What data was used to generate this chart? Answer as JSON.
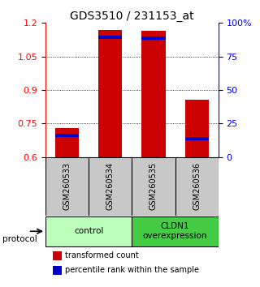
{
  "title": "GDS3510 / 231153_at",
  "samples": [
    "GSM260533",
    "GSM260534",
    "GSM260535",
    "GSM260536"
  ],
  "red_bar_tops": [
    0.73,
    1.17,
    1.165,
    0.855
  ],
  "blue_marker_vals": [
    0.69,
    1.13,
    1.125,
    0.675
  ],
  "bar_base": 0.6,
  "ylim": [
    0.6,
    1.2
  ],
  "yticks_left": [
    0.6,
    0.75,
    0.9,
    1.05,
    1.2
  ],
  "yticks_right_labels": [
    "0",
    "25",
    "75",
    "100"
  ],
  "yticks_right_vals": [
    0.6,
    0.75,
    1.05,
    1.2
  ],
  "bar_width": 0.55,
  "red_color": "#cc0000",
  "blue_color": "#0000cc",
  "protocol_label": "protocol",
  "legend_red": "transformed count",
  "legend_blue": "percentile rank within the sample",
  "sample_box_color": "#c8c8c8",
  "title_fontsize": 10,
  "tick_fontsize": 8,
  "group1_color": "#bbffbb",
  "group2_color": "#44cc44"
}
